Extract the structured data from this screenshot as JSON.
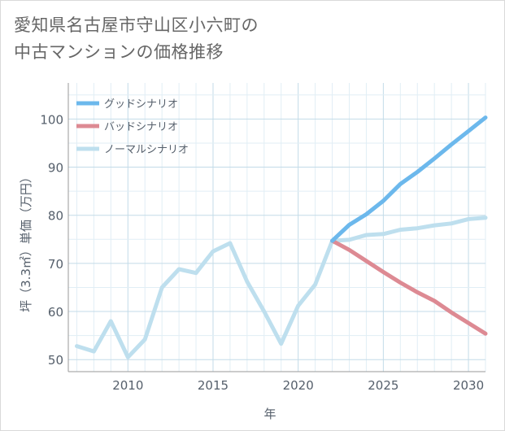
{
  "title_lines": [
    "愛知県名古屋市守山区小六町の",
    "中古マンションの価格推移"
  ],
  "chart_data": {
    "type": "line",
    "xlabel": "年",
    "ylabel": "坪（3.3㎡）単価（万円）",
    "xlim": [
      2006.5,
      2031
    ],
    "ylim": [
      47.5,
      107.5
    ],
    "x_ticks": [
      2010,
      2015,
      2020,
      2025,
      2030
    ],
    "y_ticks": [
      50,
      60,
      70,
      80,
      90,
      100
    ],
    "grid": true,
    "legend_position": "top-left",
    "series": [
      {
        "name": "グッドシナリオ",
        "color": "#6cb8ec",
        "x": [
          2022,
          2023,
          2024,
          2025,
          2026,
          2027,
          2028,
          2029,
          2030,
          2031
        ],
        "values": [
          74.7,
          78.0,
          80.2,
          83.0,
          86.5,
          89.0,
          91.8,
          94.7,
          97.5,
          100.3
        ]
      },
      {
        "name": "バッドシナリオ",
        "color": "#dd8a93",
        "x": [
          2022,
          2023,
          2024,
          2025,
          2026,
          2027,
          2028,
          2029,
          2030,
          2031
        ],
        "values": [
          74.7,
          72.8,
          70.5,
          68.2,
          66.0,
          64.0,
          62.2,
          59.8,
          57.6,
          55.4
        ]
      },
      {
        "name": "ノーマルシナリオ",
        "color": "#bedfee",
        "x": [
          2007,
          2008,
          2009,
          2010,
          2011,
          2012,
          2013,
          2014,
          2015,
          2016,
          2017,
          2018,
          2019,
          2020,
          2021,
          2022,
          2023,
          2024,
          2025,
          2026,
          2027,
          2028,
          2029,
          2030,
          2031
        ],
        "values": [
          52.8,
          51.7,
          58.0,
          50.5,
          54.2,
          65.0,
          68.8,
          68.0,
          72.5,
          74.2,
          66.2,
          60.0,
          53.3,
          61.2,
          65.6,
          74.7,
          74.9,
          75.9,
          76.1,
          77.0,
          77.3,
          77.9,
          78.3,
          79.2,
          79.5
        ]
      }
    ]
  }
}
